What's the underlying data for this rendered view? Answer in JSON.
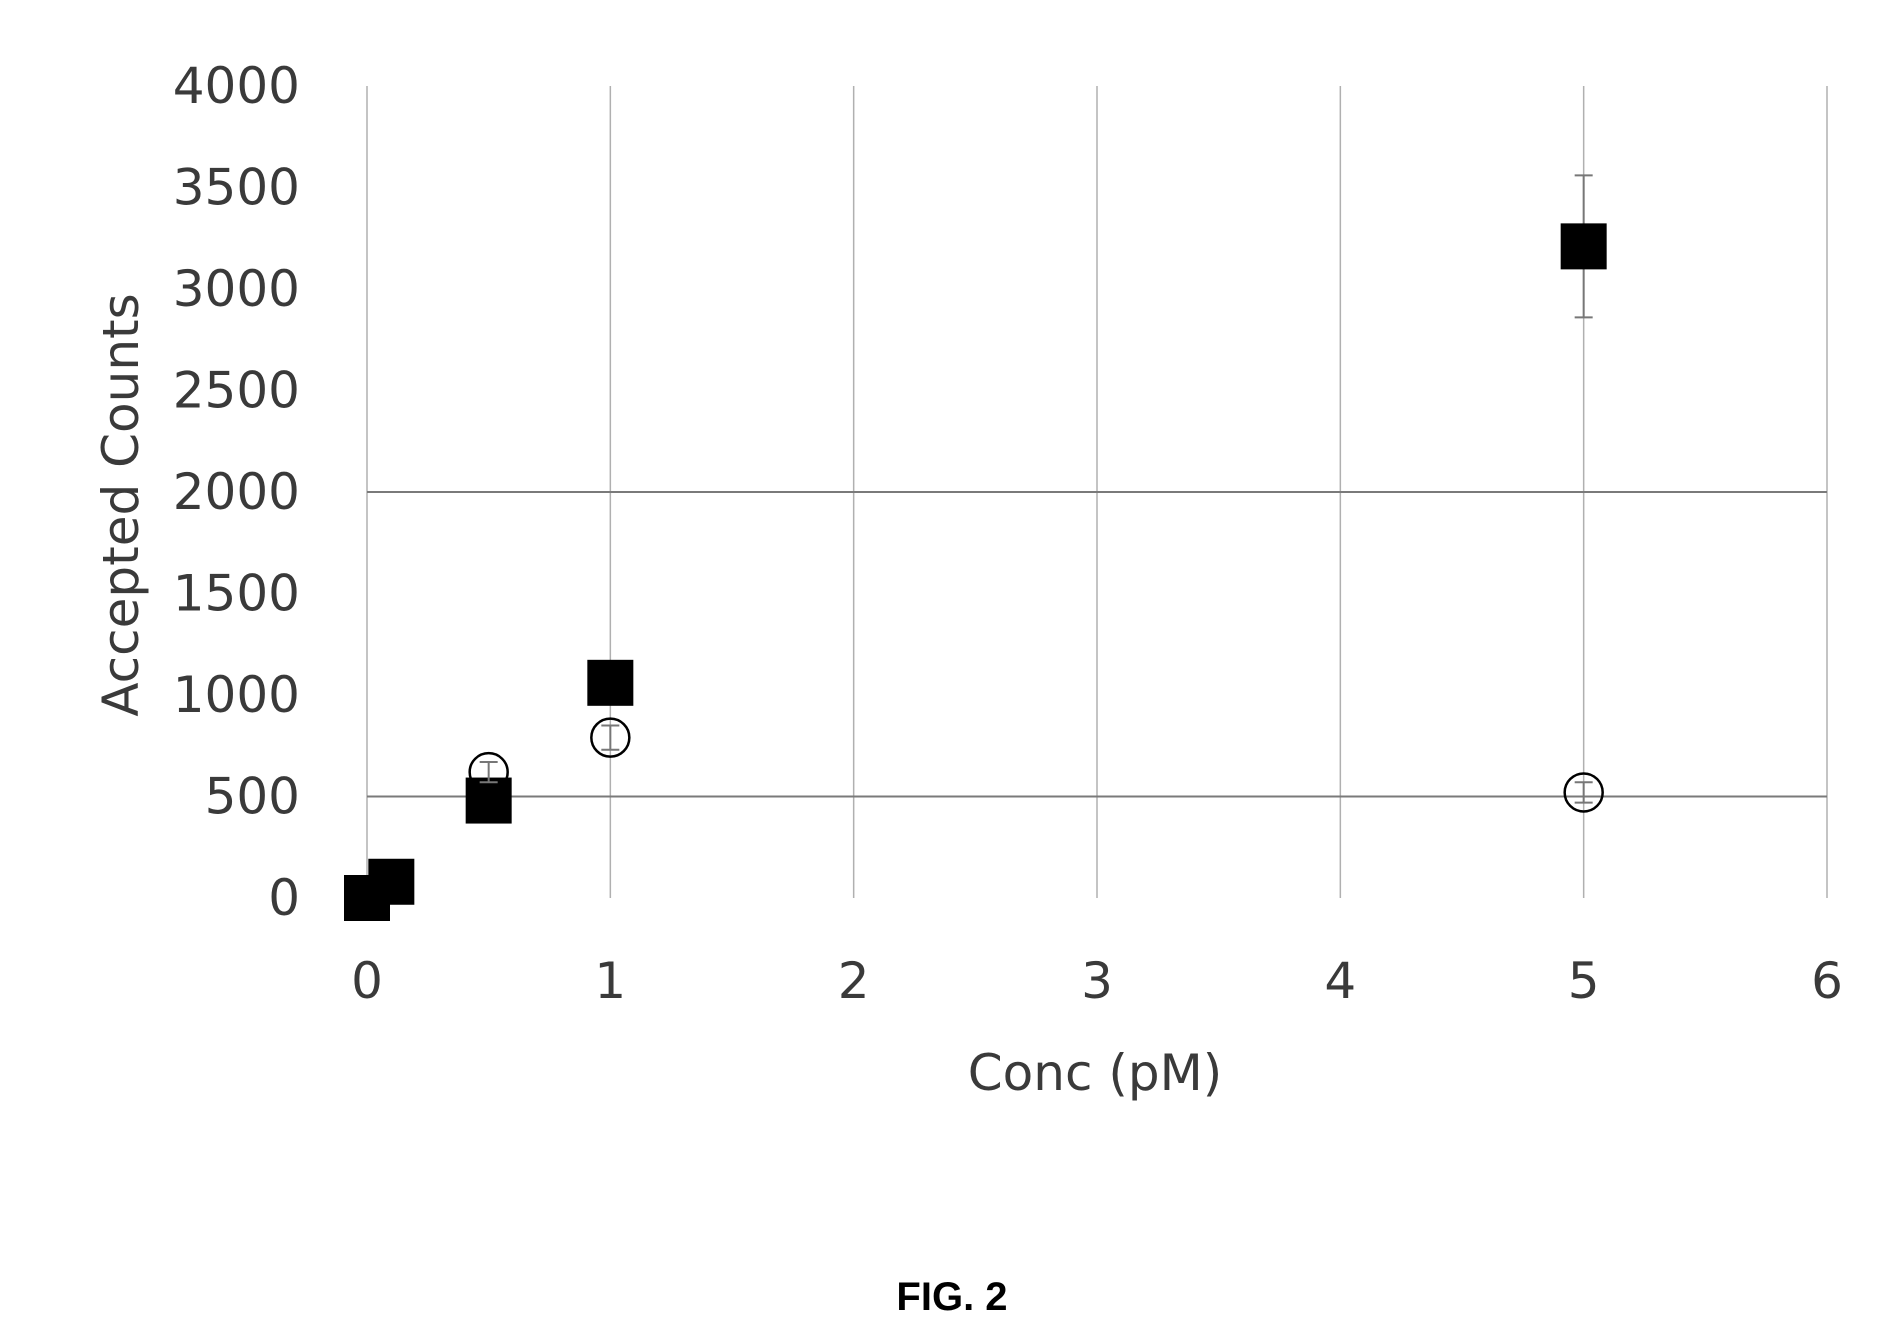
{
  "chart_data": {
    "type": "scatter",
    "title": "",
    "xlabel": "Conc (pM)",
    "ylabel": "Accepted Counts",
    "xlim": [
      0,
      6
    ],
    "ylim": [
      0,
      4000
    ],
    "x_ticks": [
      "0",
      "1",
      "2",
      "3",
      "4",
      "5",
      "6"
    ],
    "y_ticks": [
      "0",
      "500",
      "1000",
      "1500",
      "2000",
      "2500",
      "3000",
      "3500",
      "4000"
    ],
    "grid": "vertical",
    "legend": "none",
    "series": [
      {
        "marker": "filled-square",
        "color": "#000000",
        "points": [
          {
            "x": 0,
            "y": 0,
            "err": 0
          },
          {
            "x": 0.1,
            "y": 80,
            "err": 0
          },
          {
            "x": 0.5,
            "y": 480,
            "err": 0
          },
          {
            "x": 1,
            "y": 1060,
            "err": 100
          },
          {
            "x": 5,
            "y": 3210,
            "err": 350
          }
        ]
      },
      {
        "marker": "open-circle",
        "color": "#000000",
        "points": [
          {
            "x": 0,
            "y": 0,
            "err": 0
          },
          {
            "x": 0.1,
            "y": 80,
            "err": 0
          },
          {
            "x": 0.5,
            "y": 620,
            "err": 50
          },
          {
            "x": 1,
            "y": 790,
            "err": 60
          },
          {
            "x": 5,
            "y": 520,
            "err": 50
          }
        ]
      }
    ]
  },
  "caption": "FIG. 2"
}
